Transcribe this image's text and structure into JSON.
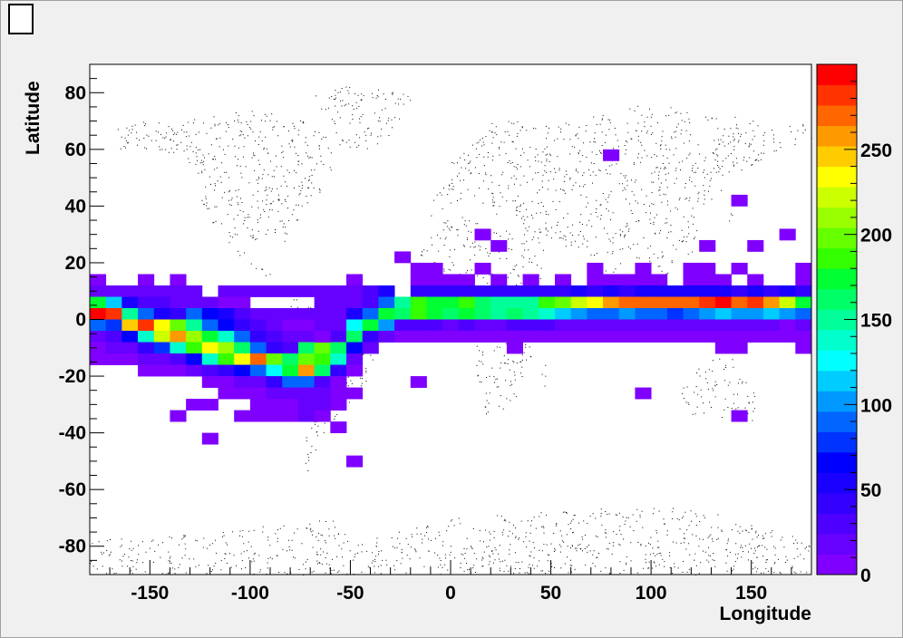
{
  "chart_data": {
    "type": "heatmap",
    "title": "",
    "xlabel": "Longitude",
    "ylabel": "Latitude",
    "xlim": [
      -180,
      180
    ],
    "ylim": [
      -90,
      90
    ],
    "x_ticks": [
      -150,
      -100,
      -50,
      0,
      50,
      100,
      150
    ],
    "y_ticks": [
      -80,
      -60,
      -40,
      -20,
      0,
      20,
      40,
      60,
      80
    ],
    "colorbar": {
      "range": [
        0,
        300
      ],
      "ticks": [
        0,
        50,
        100,
        150,
        200,
        250
      ],
      "colors": [
        "#7f00ff",
        "#6600ff",
        "#4d00ff",
        "#3300ff",
        "#1a00ff",
        "#0000ff",
        "#0033ff",
        "#0066ff",
        "#0099ff",
        "#00ccff",
        "#00ffff",
        "#00ffcc",
        "#00ff99",
        "#00ff66",
        "#00ff33",
        "#33ff00",
        "#66ff00",
        "#99ff00",
        "#ccff00",
        "#ffff00",
        "#ffcc00",
        "#ff9900",
        "#ff6600",
        "#ff3300",
        "#ff0000"
      ]
    },
    "background": "world map (dotted continents)",
    "bin_size": [
      8,
      4
    ],
    "cells": [
      [
        -176,
        14,
        5
      ],
      [
        -152,
        14,
        5
      ],
      [
        -136,
        14,
        5
      ],
      [
        -48,
        14,
        5
      ],
      [
        -16,
        14,
        5
      ],
      [
        -8,
        14,
        5
      ],
      [
        0,
        14,
        5
      ],
      [
        8,
        14,
        5
      ],
      [
        24,
        14,
        5
      ],
      [
        40,
        14,
        5
      ],
      [
        56,
        14,
        5
      ],
      [
        72,
        14,
        5
      ],
      [
        80,
        14,
        5
      ],
      [
        88,
        14,
        5
      ],
      [
        96,
        14,
        5
      ],
      [
        104,
        14,
        5
      ],
      [
        120,
        14,
        5
      ],
      [
        128,
        14,
        5
      ],
      [
        136,
        14,
        5
      ],
      [
        152,
        14,
        5
      ],
      [
        176,
        14,
        5
      ],
      [
        -16,
        18,
        5
      ],
      [
        -8,
        18,
        5
      ],
      [
        16,
        18,
        5
      ],
      [
        72,
        18,
        5
      ],
      [
        96,
        18,
        5
      ],
      [
        120,
        18,
        5
      ],
      [
        128,
        18,
        5
      ],
      [
        144,
        18,
        5
      ],
      [
        176,
        18,
        5
      ],
      [
        -24,
        22,
        5
      ],
      [
        24,
        26,
        5
      ],
      [
        128,
        26,
        5
      ],
      [
        152,
        26,
        5
      ],
      [
        16,
        30,
        5
      ],
      [
        168,
        30,
        5
      ],
      [
        144,
        42,
        5
      ],
      [
        80,
        58,
        5
      ],
      [
        -176,
        10,
        12
      ],
      [
        -168,
        10,
        12
      ],
      [
        -160,
        10,
        12
      ],
      [
        -152,
        10,
        12
      ],
      [
        -144,
        10,
        12
      ],
      [
        -136,
        10,
        12
      ],
      [
        -128,
        10,
        12
      ],
      [
        -112,
        10,
        12
      ],
      [
        -104,
        10,
        12
      ],
      [
        -96,
        10,
        12
      ],
      [
        -88,
        10,
        12
      ],
      [
        -80,
        10,
        12
      ],
      [
        -72,
        10,
        12
      ],
      [
        -64,
        10,
        12
      ],
      [
        -56,
        10,
        12
      ],
      [
        -48,
        10,
        12
      ],
      [
        -40,
        10,
        25
      ],
      [
        -32,
        10,
        50
      ],
      [
        -16,
        10,
        40
      ],
      [
        -8,
        10,
        40
      ],
      [
        0,
        10,
        45
      ],
      [
        8,
        10,
        40
      ],
      [
        16,
        10,
        45
      ],
      [
        24,
        10,
        40
      ],
      [
        32,
        10,
        40
      ],
      [
        40,
        10,
        45
      ],
      [
        48,
        10,
        40
      ],
      [
        56,
        10,
        45
      ],
      [
        64,
        10,
        50
      ],
      [
        72,
        10,
        45
      ],
      [
        80,
        10,
        50
      ],
      [
        88,
        10,
        45
      ],
      [
        96,
        10,
        55
      ],
      [
        104,
        10,
        50
      ],
      [
        112,
        10,
        55
      ],
      [
        120,
        10,
        50
      ],
      [
        128,
        10,
        55
      ],
      [
        136,
        10,
        50
      ],
      [
        144,
        10,
        45
      ],
      [
        152,
        10,
        50
      ],
      [
        160,
        10,
        45
      ],
      [
        168,
        10,
        50
      ],
      [
        176,
        10,
        45
      ],
      [
        -176,
        6,
        175
      ],
      [
        -168,
        6,
        115
      ],
      [
        -160,
        6,
        55
      ],
      [
        -152,
        6,
        35
      ],
      [
        -144,
        6,
        25
      ],
      [
        -136,
        6,
        20
      ],
      [
        -128,
        6,
        15
      ],
      [
        -120,
        6,
        12
      ],
      [
        -112,
        6,
        10
      ],
      [
        -104,
        6,
        8
      ],
      [
        -64,
        6,
        20
      ],
      [
        -56,
        6,
        12
      ],
      [
        -48,
        6,
        20
      ],
      [
        -40,
        6,
        25
      ],
      [
        -32,
        6,
        90
      ],
      [
        -24,
        6,
        150
      ],
      [
        -16,
        6,
        185
      ],
      [
        -8,
        6,
        175
      ],
      [
        0,
        6,
        170
      ],
      [
        8,
        6,
        180
      ],
      [
        16,
        6,
        165
      ],
      [
        24,
        6,
        155
      ],
      [
        32,
        6,
        150
      ],
      [
        40,
        6,
        145
      ],
      [
        48,
        6,
        185
      ],
      [
        56,
        6,
        200
      ],
      [
        64,
        6,
        225
      ],
      [
        72,
        6,
        230
      ],
      [
        80,
        6,
        255
      ],
      [
        88,
        6,
        265
      ],
      [
        96,
        6,
        265
      ],
      [
        104,
        6,
        275
      ],
      [
        112,
        6,
        275
      ],
      [
        120,
        6,
        265
      ],
      [
        128,
        6,
        280
      ],
      [
        136,
        6,
        295
      ],
      [
        144,
        6,
        270
      ],
      [
        152,
        6,
        280
      ],
      [
        160,
        6,
        255
      ],
      [
        168,
        6,
        225
      ],
      [
        176,
        6,
        170
      ],
      [
        -176,
        2,
        290
      ],
      [
        -168,
        2,
        285
      ],
      [
        -160,
        2,
        150
      ],
      [
        -152,
        2,
        90
      ],
      [
        -144,
        2,
        50
      ],
      [
        -136,
        2,
        45
      ],
      [
        -128,
        2,
        90
      ],
      [
        -120,
        2,
        70
      ],
      [
        -112,
        2,
        55
      ],
      [
        -104,
        2,
        35
      ],
      [
        -96,
        2,
        20
      ],
      [
        -88,
        2,
        15
      ],
      [
        -80,
        2,
        12
      ],
      [
        -72,
        2,
        12
      ],
      [
        -64,
        2,
        12
      ],
      [
        -56,
        2,
        15
      ],
      [
        -48,
        2,
        50
      ],
      [
        -40,
        2,
        85
      ],
      [
        -32,
        2,
        170
      ],
      [
        -24,
        2,
        160
      ],
      [
        -16,
        2,
        180
      ],
      [
        -8,
        2,
        175
      ],
      [
        0,
        2,
        165
      ],
      [
        8,
        2,
        170
      ],
      [
        16,
        2,
        160
      ],
      [
        24,
        2,
        150
      ],
      [
        32,
        2,
        165
      ],
      [
        40,
        2,
        155
      ],
      [
        48,
        2,
        135
      ],
      [
        56,
        2,
        115
      ],
      [
        64,
        2,
        100
      ],
      [
        72,
        2,
        95
      ],
      [
        80,
        2,
        90
      ],
      [
        88,
        2,
        100
      ],
      [
        96,
        2,
        95
      ],
      [
        104,
        2,
        85
      ],
      [
        112,
        2,
        80
      ],
      [
        120,
        2,
        90
      ],
      [
        128,
        2,
        100
      ],
      [
        136,
        2,
        110
      ],
      [
        144,
        2,
        100
      ],
      [
        152,
        2,
        105
      ],
      [
        160,
        2,
        110
      ],
      [
        168,
        2,
        100
      ],
      [
        176,
        2,
        95
      ],
      [
        -176,
        -2,
        90
      ],
      [
        -168,
        -2,
        75
      ],
      [
        -160,
        -2,
        240
      ],
      [
        -152,
        -2,
        285
      ],
      [
        -144,
        -2,
        230
      ],
      [
        -136,
        -2,
        195
      ],
      [
        -128,
        -2,
        150
      ],
      [
        -120,
        -2,
        85
      ],
      [
        -112,
        -2,
        60
      ],
      [
        -104,
        -2,
        40
      ],
      [
        -96,
        -2,
        25
      ],
      [
        -88,
        -2,
        15
      ],
      [
        -80,
        -2,
        10
      ],
      [
        -72,
        -2,
        10
      ],
      [
        -64,
        -2,
        12
      ],
      [
        -56,
        -2,
        20
      ],
      [
        -48,
        -2,
        130
      ],
      [
        -40,
        -2,
        175
      ],
      [
        -32,
        -2,
        100
      ],
      [
        -24,
        -2,
        30
      ],
      [
        -16,
        -2,
        25
      ],
      [
        -8,
        -2,
        25
      ],
      [
        0,
        -2,
        20
      ],
      [
        8,
        -2,
        25
      ],
      [
        16,
        -2,
        22
      ],
      [
        24,
        -2,
        20
      ],
      [
        32,
        -2,
        25
      ],
      [
        40,
        -2,
        30
      ],
      [
        48,
        -2,
        25
      ],
      [
        56,
        -2,
        20
      ],
      [
        64,
        -2,
        15
      ],
      [
        72,
        -2,
        20
      ],
      [
        80,
        -2,
        15
      ],
      [
        88,
        -2,
        20
      ],
      [
        96,
        -2,
        15
      ],
      [
        104,
        -2,
        15
      ],
      [
        112,
        -2,
        20
      ],
      [
        120,
        -2,
        15
      ],
      [
        128,
        -2,
        15
      ],
      [
        136,
        -2,
        20
      ],
      [
        144,
        -2,
        15
      ],
      [
        152,
        -2,
        20
      ],
      [
        160,
        -2,
        15
      ],
      [
        168,
        -2,
        10
      ],
      [
        176,
        -2,
        15
      ],
      [
        -176,
        -6,
        20
      ],
      [
        -168,
        -6,
        30
      ],
      [
        -160,
        -6,
        60
      ],
      [
        -152,
        -6,
        135
      ],
      [
        -144,
        -6,
        225
      ],
      [
        -136,
        -6,
        260
      ],
      [
        -128,
        -6,
        215
      ],
      [
        -120,
        -6,
        170
      ],
      [
        -112,
        -6,
        135
      ],
      [
        -104,
        -6,
        90
      ],
      [
        -96,
        -6,
        45
      ],
      [
        -88,
        -6,
        25
      ],
      [
        -80,
        -6,
        15
      ],
      [
        -72,
        -6,
        12
      ],
      [
        -64,
        -6,
        15
      ],
      [
        -56,
        -6,
        30
      ],
      [
        -48,
        -6,
        160
      ],
      [
        -40,
        -6,
        40
      ],
      [
        -32,
        -6,
        12
      ],
      [
        -24,
        -6,
        8
      ],
      [
        -16,
        -6,
        8
      ],
      [
        -8,
        -6,
        8
      ],
      [
        0,
        -6,
        8
      ],
      [
        8,
        -6,
        8
      ],
      [
        16,
        -6,
        8
      ],
      [
        24,
        -6,
        8
      ],
      [
        32,
        -6,
        8
      ],
      [
        40,
        -6,
        8
      ],
      [
        48,
        -6,
        8
      ],
      [
        56,
        -6,
        8
      ],
      [
        64,
        -6,
        8
      ],
      [
        72,
        -6,
        8
      ],
      [
        80,
        -6,
        8
      ],
      [
        88,
        -6,
        8
      ],
      [
        96,
        -6,
        8
      ],
      [
        104,
        -6,
        8
      ],
      [
        112,
        -6,
        8
      ],
      [
        120,
        -6,
        8
      ],
      [
        128,
        -6,
        8
      ],
      [
        136,
        -6,
        8
      ],
      [
        144,
        -6,
        8
      ],
      [
        152,
        -6,
        8
      ],
      [
        160,
        -6,
        8
      ],
      [
        168,
        -6,
        8
      ],
      [
        176,
        -6,
        8
      ],
      [
        -176,
        -10,
        10
      ],
      [
        -168,
        -10,
        12
      ],
      [
        -160,
        -10,
        20
      ],
      [
        -152,
        -10,
        40
      ],
      [
        -144,
        -10,
        80
      ],
      [
        -136,
        -10,
        135
      ],
      [
        -128,
        -10,
        185
      ],
      [
        -120,
        -10,
        235
      ],
      [
        -112,
        -10,
        210
      ],
      [
        -104,
        -10,
        160
      ],
      [
        -96,
        -10,
        85
      ],
      [
        -88,
        -10,
        45
      ],
      [
        -80,
        -10,
        30
      ],
      [
        -72,
        -10,
        160
      ],
      [
        -64,
        -10,
        195
      ],
      [
        -56,
        -10,
        160
      ],
      [
        -48,
        -10,
        60
      ],
      [
        -40,
        -10,
        15
      ],
      [
        32,
        -10,
        8
      ],
      [
        136,
        -10,
        8
      ],
      [
        144,
        -10,
        8
      ],
      [
        176,
        -10,
        8
      ],
      [
        -176,
        -14,
        8
      ],
      [
        -168,
        -14,
        8
      ],
      [
        -160,
        -14,
        10
      ],
      [
        -152,
        -14,
        15
      ],
      [
        -144,
        -14,
        20
      ],
      [
        -136,
        -14,
        35
      ],
      [
        -128,
        -14,
        60
      ],
      [
        -120,
        -14,
        140
      ],
      [
        -112,
        -14,
        180
      ],
      [
        -104,
        -14,
        230
      ],
      [
        -96,
        -14,
        275
      ],
      [
        -88,
        -14,
        200
      ],
      [
        -80,
        -14,
        165
      ],
      [
        -72,
        -14,
        195
      ],
      [
        -64,
        -14,
        185
      ],
      [
        -56,
        -14,
        140
      ],
      [
        -48,
        -14,
        20
      ],
      [
        -152,
        -18,
        8
      ],
      [
        -144,
        -18,
        8
      ],
      [
        -136,
        -18,
        10
      ],
      [
        -128,
        -18,
        12
      ],
      [
        -120,
        -18,
        25
      ],
      [
        -112,
        -18,
        40
      ],
      [
        -104,
        -18,
        60
      ],
      [
        -96,
        -18,
        95
      ],
      [
        -88,
        -18,
        130
      ],
      [
        -80,
        -18,
        175
      ],
      [
        -72,
        -18,
        260
      ],
      [
        -64,
        -18,
        165
      ],
      [
        -56,
        -18,
        45
      ],
      [
        -48,
        -18,
        10
      ],
      [
        -120,
        -22,
        8
      ],
      [
        -112,
        -22,
        10
      ],
      [
        -104,
        -22,
        15
      ],
      [
        -96,
        -22,
        20
      ],
      [
        -88,
        -22,
        45
      ],
      [
        -80,
        -22,
        85
      ],
      [
        -72,
        -22,
        95
      ],
      [
        -64,
        -22,
        25
      ],
      [
        -56,
        -22,
        10
      ],
      [
        -112,
        -26,
        8
      ],
      [
        -104,
        -26,
        8
      ],
      [
        -96,
        -26,
        10
      ],
      [
        -88,
        -26,
        15
      ],
      [
        -80,
        -26,
        15
      ],
      [
        -72,
        -26,
        15
      ],
      [
        -64,
        -26,
        15
      ],
      [
        -56,
        -26,
        10
      ],
      [
        -48,
        -26,
        10
      ],
      [
        -128,
        -30,
        8
      ],
      [
        -96,
        -30,
        10
      ],
      [
        -88,
        -30,
        10
      ],
      [
        -80,
        -30,
        10
      ],
      [
        -72,
        -30,
        12
      ],
      [
        -64,
        -30,
        12
      ],
      [
        -56,
        -30,
        10
      ],
      [
        -104,
        -34,
        8
      ],
      [
        -96,
        -34,
        10
      ],
      [
        -88,
        -34,
        10
      ],
      [
        -80,
        -34,
        10
      ],
      [
        -72,
        -34,
        12
      ],
      [
        -64,
        -34,
        10
      ],
      [
        -16,
        -22,
        5
      ],
      [
        96,
        -26,
        5
      ],
      [
        -120,
        -30,
        5
      ],
      [
        -136,
        -34,
        5
      ],
      [
        144,
        -34,
        5
      ],
      [
        -56,
        -38,
        5
      ],
      [
        -120,
        -42,
        5
      ],
      [
        -48,
        -50,
        5
      ],
      [
        -64,
        -6,
        5
      ]
    ]
  }
}
